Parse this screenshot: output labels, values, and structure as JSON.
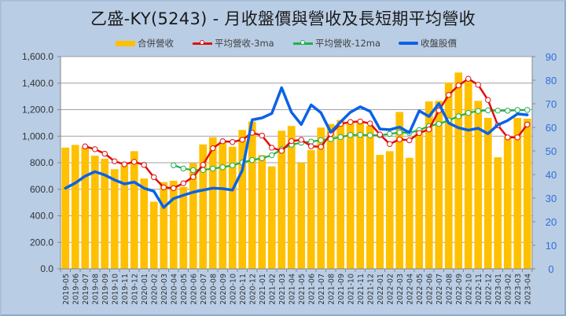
{
  "title": "乙盛-KY(5243)  - 月收盤價與營收及長短期平均營收",
  "legend": {
    "revenue": "合併營收",
    "ma3": "平均營收-3ma",
    "ma12": "平均營收-12ma",
    "price": "收盤股價"
  },
  "colors": {
    "revenue": "#ffc000",
    "ma3": "#e01010",
    "ma12": "#22b04a",
    "price": "#0a62e6",
    "background": "#b9cde5",
    "plot_bg": "#ffffff",
    "grid": "#a0a0a0",
    "right_axis_text": "#2f6fd6"
  },
  "chart_data": {
    "type": "bar",
    "title": "乙盛-KY(5243)  - 月收盤價與營收及長短期平均營收",
    "xlabel": "",
    "ylabel": "",
    "ylim": [
      0,
      1600
    ],
    "y2lim": [
      0,
      90
    ],
    "grid": true,
    "legend_position": "top",
    "yticks": [
      "0.0",
      "200.0",
      "400.0",
      "600.0",
      "800.0",
      "1,000.0",
      "1,200.0",
      "1,400.0",
      "1,600.0"
    ],
    "y2ticks": [
      "0",
      "10",
      "20",
      "30",
      "40",
      "50",
      "60",
      "70",
      "80",
      "90"
    ],
    "categories": [
      "2019-05",
      "2019-06",
      "2019-07",
      "2019-08",
      "2019-09",
      "2019-10",
      "2019-11",
      "2019-12",
      "2020-01",
      "2020-02",
      "2020-03",
      "2020-04",
      "2020-05",
      "2020-06",
      "2020-07",
      "2020-08",
      "2020-09",
      "2020-10",
      "2020-11",
      "2020-12",
      "2021-01",
      "2021-02",
      "2021-03",
      "2021-04",
      "2021-05",
      "2021-06",
      "2021-07",
      "2021-08",
      "2021-09",
      "2021-10",
      "2021-11",
      "2021-12",
      "2022-01",
      "2022-02",
      "2022-03",
      "2022-04",
      "2022-05",
      "2022-06",
      "2022-07",
      "2022-08",
      "2022-09",
      "2022-10",
      "2022-11",
      "2022-12",
      "2023-01",
      "2023-02",
      "2023-03",
      "2023-04"
    ],
    "series": [
      {
        "name": "合併營收",
        "type": "bar",
        "axis": "left",
        "values": [
          914,
          934,
          920,
          853,
          830,
          751,
          782,
          887,
          681,
          506,
          654,
          664,
          618,
          796,
          938,
          992,
          956,
          920,
          1047,
          1110,
          857,
          772,
          1041,
          1077,
          800,
          895,
          1065,
          1092,
          1122,
          1108,
          1102,
          1078,
          859,
          887,
          1183,
          837,
          1053,
          1262,
          1266,
          1404,
          1480,
          1414,
          1266,
          1138,
          841,
          994,
          1138,
          1132
        ]
      },
      {
        "name": "平均營收-3ma",
        "type": "line",
        "axis": "left",
        "markers": true,
        "values": [
          null,
          null,
          923,
          902,
          868,
          811,
          788,
          807,
          783,
          691,
          614,
          608,
          645,
          693,
          784,
          909,
          962,
          956,
          974,
          1026,
          1005,
          913,
          890,
          963,
          973,
          924,
          920,
          1017,
          1093,
          1107,
          1111,
          1096,
          1013,
          941,
          976,
          969,
          1024,
          1051,
          1194,
          1311,
          1383,
          1433,
          1387,
          1273,
          1082,
          991,
          991,
          1088
        ]
      },
      {
        "name": "平均營收-12ma",
        "type": "line",
        "axis": "left",
        "markers": true,
        "values": [
          null,
          null,
          null,
          null,
          null,
          null,
          null,
          null,
          null,
          null,
          null,
          781,
          756,
          744,
          745,
          756,
          766,
          780,
          802,
          820,
          834,
          856,
          901,
          936,
          951,
          959,
          970,
          979,
          993,
          1009,
          1010,
          1007,
          1007,
          1017,
          1028,
          1025,
          1046,
          1076,
          1093,
          1119,
          1150,
          1176,
          1190,
          1195,
          1193,
          1192,
          1197,
          1198
        ]
      },
      {
        "name": "收盤股價",
        "type": "line",
        "axis": "right",
        "markers": false,
        "values": [
          34.2,
          36.4,
          39.3,
          41.2,
          39.8,
          37.7,
          36.0,
          36.8,
          34.2,
          32.9,
          26.0,
          29.8,
          31.2,
          32.5,
          33.4,
          34.2,
          34.0,
          33.4,
          41.8,
          63.2,
          64.0,
          65.9,
          76.8,
          66.4,
          61.2,
          69.5,
          66.2,
          57.9,
          62.3,
          66.4,
          68.7,
          66.8,
          59.3,
          59.0,
          60.1,
          57.7,
          67.0,
          64.6,
          70.1,
          61.8,
          59.8,
          58.8,
          59.6,
          57.3,
          61.0,
          62.9,
          65.7,
          65.3
        ]
      }
    ]
  }
}
